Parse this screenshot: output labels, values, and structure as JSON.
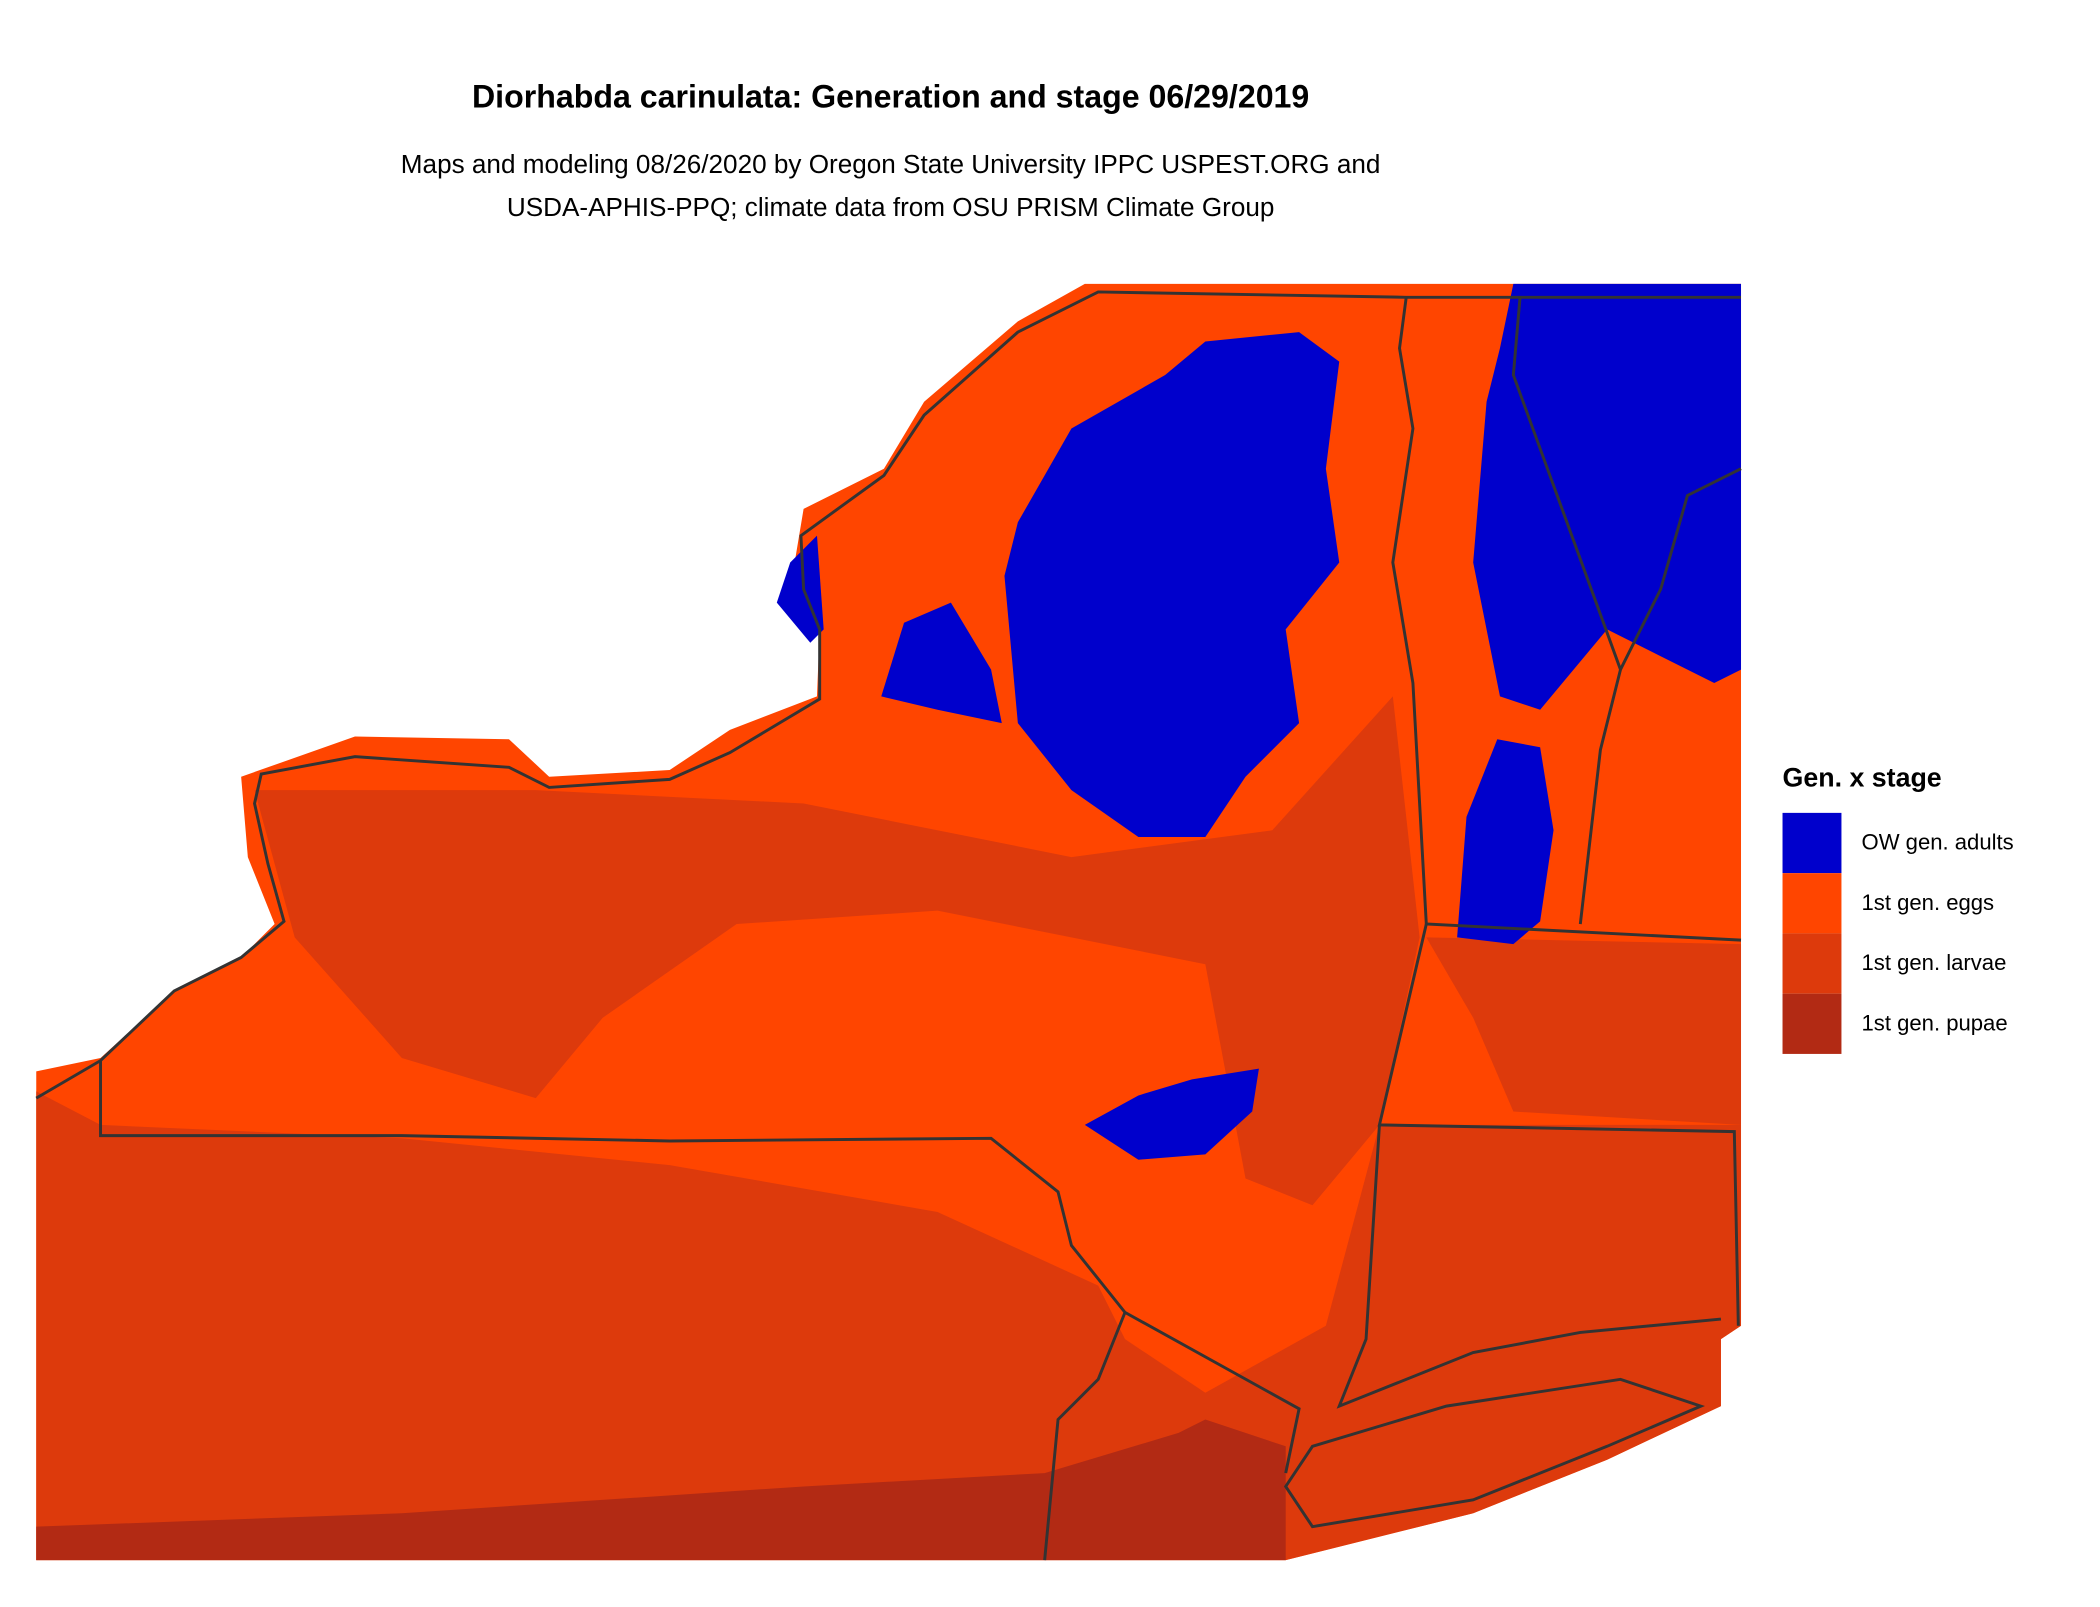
{
  "map": {
    "title": "Diorhabda carinulata: Generation and stage 06/29/2019",
    "subtitle": [
      "Maps and modeling 08/26/2020 by Oregon State University IPPC USPEST.ORG and",
      "USDA-APHIS-PPQ; climate data from OSU PRISM Climate Group"
    ],
    "legend": {
      "title": "Gen. x stage",
      "items": [
        {
          "label": "OW gen. adults",
          "color": "#0000cc"
        },
        {
          "label": "1st gen. eggs",
          "color": "#ff4500"
        },
        {
          "label": "1st gen. larvae",
          "color": "#dd3a0c"
        },
        {
          "label": "1st gen. pupae",
          "color": "#b22a14"
        }
      ]
    }
  }
}
